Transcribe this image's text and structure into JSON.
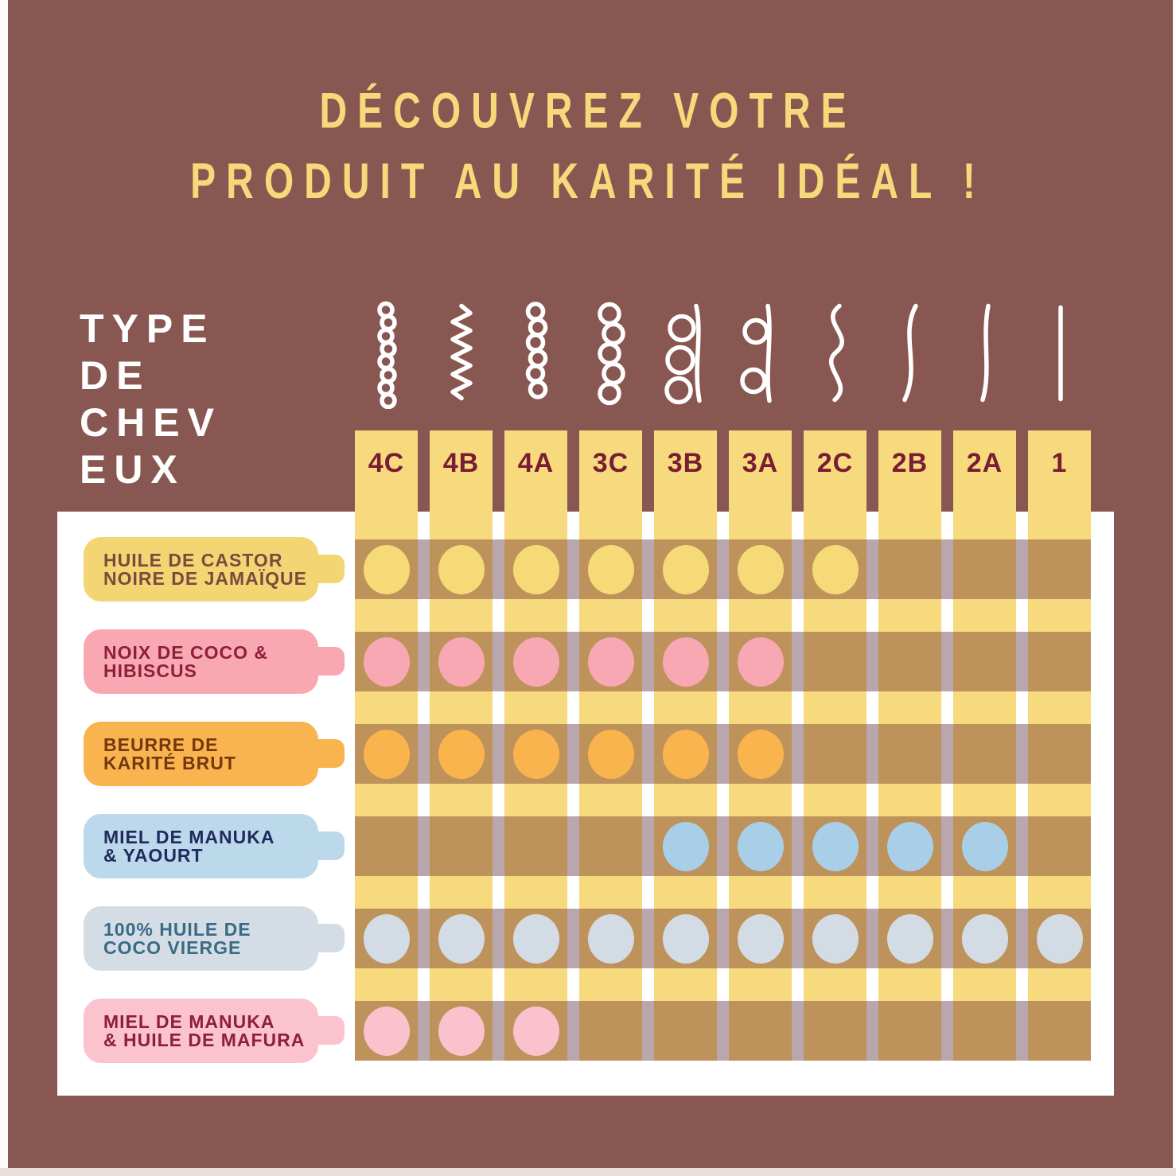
{
  "title": {
    "line1": "DÉCOUVREZ VOTRE",
    "line2": "PRODUIT AU KARITÉ IDÉAL !"
  },
  "axis": {
    "label": "TYPE DE CHEVEUX",
    "lines": [
      "TYPE",
      "DE",
      "CHEV",
      "EUX"
    ]
  },
  "hair_types": [
    {
      "label": "4C",
      "icon": "tight-coil-icon"
    },
    {
      "label": "4B",
      "icon": "zigzag-icon"
    },
    {
      "label": "4A",
      "icon": "small-loops-icon"
    },
    {
      "label": "3C",
      "icon": "medium-loops-icon"
    },
    {
      "label": "3B",
      "icon": "large-loops-icon"
    },
    {
      "label": "3A",
      "icon": "open-loops-icon"
    },
    {
      "label": "2C",
      "icon": "strong-wave-icon"
    },
    {
      "label": "2B",
      "icon": "soft-wave-icon"
    },
    {
      "label": "2A",
      "icon": "light-wave-icon"
    },
    {
      "label": "1",
      "icon": "straight-hair-icon"
    }
  ],
  "products": [
    {
      "name": "HUILE DE CASTOR NOIRE DE JAMAÏQUE",
      "label_lines": [
        "HUILE DE CASTOR",
        "NOIRE DE JAMAÏQUE"
      ],
      "pill_color": "#f3d573",
      "text_color": "#7a4b3d",
      "dot_color": "#f6da78",
      "compatible": [
        1,
        1,
        1,
        1,
        1,
        1,
        1,
        0,
        0,
        0
      ]
    },
    {
      "name": "NOIX DE COCO & HIBISCUS",
      "label_lines": [
        "NOIX DE COCO &",
        "HIBISCUS"
      ],
      "pill_color": "#f9a8b2",
      "text_color": "#8e1f3a",
      "dot_color": "#f8a8b2",
      "compatible": [
        1,
        1,
        1,
        1,
        1,
        1,
        0,
        0,
        0,
        0
      ]
    },
    {
      "name": "BEURRE DE KARITÉ BRUT",
      "label_lines": [
        "BEURRE DE",
        "KARITÉ BRUT"
      ],
      "pill_color": "#fab44f",
      "text_color": "#74380f",
      "dot_color": "#f9b44e",
      "compatible": [
        1,
        1,
        1,
        1,
        1,
        1,
        0,
        0,
        0,
        0
      ]
    },
    {
      "name": "MIEL DE MANUKA & YAOURT",
      "label_lines": [
        "MIEL DE MANUKA",
        "& YAOURT"
      ],
      "pill_color": "#bcd8eb",
      "text_color": "#1f2b5b",
      "dot_color": "#a9cfe8",
      "compatible": [
        0,
        0,
        0,
        0,
        1,
        1,
        1,
        1,
        1,
        0
      ]
    },
    {
      "name": "100% HUILE DE COCO VIERGE",
      "label_lines": [
        "100% HUILE DE",
        "COCO VIERGE"
      ],
      "pill_color": "#d4dde5",
      "text_color": "#3a6a85",
      "dot_color": "#d3dce5",
      "compatible": [
        1,
        1,
        1,
        1,
        1,
        1,
        1,
        1,
        1,
        1
      ]
    },
    {
      "name": "MIEL DE MANUKA & HUILE DE MAFURA",
      "label_lines": [
        "MIEL DE MANUKA",
        "& HUILE DE MAFURA"
      ],
      "pill_color": "#fbc3ce",
      "text_color": "#8e1f3a",
      "dot_color": "#fbc1cc",
      "compatible": [
        1,
        1,
        1,
        0,
        0,
        0,
        0,
        0,
        0,
        0
      ]
    }
  ],
  "colors": {
    "background_brown": "#895751",
    "panel_white": "#ffffff",
    "column_yellow": "#f6da7d",
    "band_cell_tan": "#bd925b",
    "band_gap_mauve": "#baa7ae",
    "column_label_maroon": "#7a1c33",
    "title_yellow": "#f6d97b",
    "axis_text_white": "#ffffff",
    "icon_white": "#ffffff",
    "bottom_edge": "#e9dfdc"
  },
  "chart_data": {
    "type": "table",
    "title": "DÉCOUVREZ VOTRE PRODUIT AU KARITÉ IDÉAL !",
    "x_axis_label": "TYPE DE CHEVEUX",
    "categories": [
      "4C",
      "4B",
      "4A",
      "3C",
      "3B",
      "3A",
      "2C",
      "2B",
      "2A",
      "1"
    ],
    "series": [
      {
        "name": "HUILE DE CASTOR NOIRE DE JAMAÏQUE",
        "values": [
          1,
          1,
          1,
          1,
          1,
          1,
          1,
          0,
          0,
          0
        ]
      },
      {
        "name": "NOIX DE COCO & HIBISCUS",
        "values": [
          1,
          1,
          1,
          1,
          1,
          1,
          0,
          0,
          0,
          0
        ]
      },
      {
        "name": "BEURRE DE KARITÉ BRUT",
        "values": [
          1,
          1,
          1,
          1,
          1,
          1,
          0,
          0,
          0,
          0
        ]
      },
      {
        "name": "MIEL DE MANUKA & YAOURT",
        "values": [
          0,
          0,
          0,
          0,
          1,
          1,
          1,
          1,
          1,
          0
        ]
      },
      {
        "name": "100% HUILE DE COCO VIERGE",
        "values": [
          1,
          1,
          1,
          1,
          1,
          1,
          1,
          1,
          1,
          1
        ]
      },
      {
        "name": "MIEL DE MANUKA & HUILE DE MAFURA",
        "values": [
          1,
          1,
          1,
          0,
          0,
          0,
          0,
          0,
          0,
          0
        ]
      }
    ],
    "legend_position": "left",
    "value_encoding": "dot present = product recommended for hair type"
  }
}
